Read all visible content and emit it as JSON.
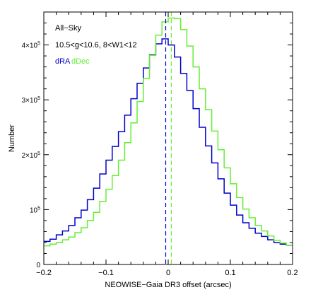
{
  "chart_data": {
    "type": "line",
    "step": true,
    "xlabel": "NEOWISE−Gaia DR3 offset (arcsec)",
    "ylabel": "Number",
    "xlim": [
      -0.2,
      0.2
    ],
    "ylim": [
      0,
      460000
    ],
    "annotations": [
      "All−Sky",
      "10.5<g<10.6,  8<W1<12"
    ],
    "legend": [
      "dRA",
      "dDec"
    ],
    "colors": {
      "dRA": "#0000cc",
      "dDec": "#66ee33"
    },
    "x_ticks": [
      {
        "value": -0.2,
        "label": "−0.2"
      },
      {
        "value": -0.1,
        "label": "−0.1"
      },
      {
        "value": 0,
        "label": "0"
      },
      {
        "value": 0.1,
        "label": "0.1"
      },
      {
        "value": 0.2,
        "label": "0.2"
      }
    ],
    "y_ticks": [
      {
        "value": 0,
        "label": "0",
        "exp": ""
      },
      {
        "value": 100000,
        "label": "10",
        "exp": "5"
      },
      {
        "value": 200000,
        "label": "2×10",
        "exp": "5"
      },
      {
        "value": 300000,
        "label": "3×10",
        "exp": "5"
      },
      {
        "value": 400000,
        "label": "4×10",
        "exp": "5"
      }
    ],
    "bin_edges": [
      -0.2,
      -0.19,
      -0.18,
      -0.17,
      -0.16,
      -0.15,
      -0.14,
      -0.13,
      -0.12,
      -0.11,
      -0.1,
      -0.09,
      -0.08,
      -0.07,
      -0.06,
      -0.05,
      -0.04,
      -0.03,
      -0.02,
      -0.01,
      0,
      0.01,
      0.02,
      0.03,
      0.04,
      0.05,
      0.06,
      0.07,
      0.08,
      0.09,
      0.1,
      0.11,
      0.12,
      0.13,
      0.14,
      0.15,
      0.16,
      0.17,
      0.18,
      0.19,
      0.2
    ],
    "series": [
      {
        "name": "dRA",
        "values": [
          42000,
          46000,
          54000,
          61000,
          71000,
          85000,
          99000,
          118000,
          139000,
          165000,
          190000,
          215000,
          242000,
          272000,
          302000,
          330000,
          358000,
          382000,
          402000,
          411000,
          400000,
          378000,
          348000,
          317000,
          284000,
          250000,
          216000,
          185000,
          156000,
          130000,
          108000,
          90000,
          76000,
          66000,
          57000,
          51000,
          45000,
          40000,
          37000,
          35000
        ]
      },
      {
        "name": "dDec",
        "values": [
          34000,
          37000,
          40000,
          45000,
          50000,
          58000,
          67000,
          80000,
          95000,
          115000,
          137000,
          162000,
          190000,
          222000,
          258000,
          297000,
          339000,
          381000,
          418000,
          442000,
          449000,
          448000,
          428000,
          398000,
          360000,
          320000,
          282000,
          243000,
          209000,
          176000,
          147000,
          122000,
          101000,
          85000,
          71000,
          61000,
          52000,
          44000,
          39000,
          35000
        ]
      }
    ],
    "vlines": [
      {
        "series": "dRA",
        "x": -0.004
      },
      {
        "series": "dDec",
        "x": 0.005
      }
    ]
  }
}
